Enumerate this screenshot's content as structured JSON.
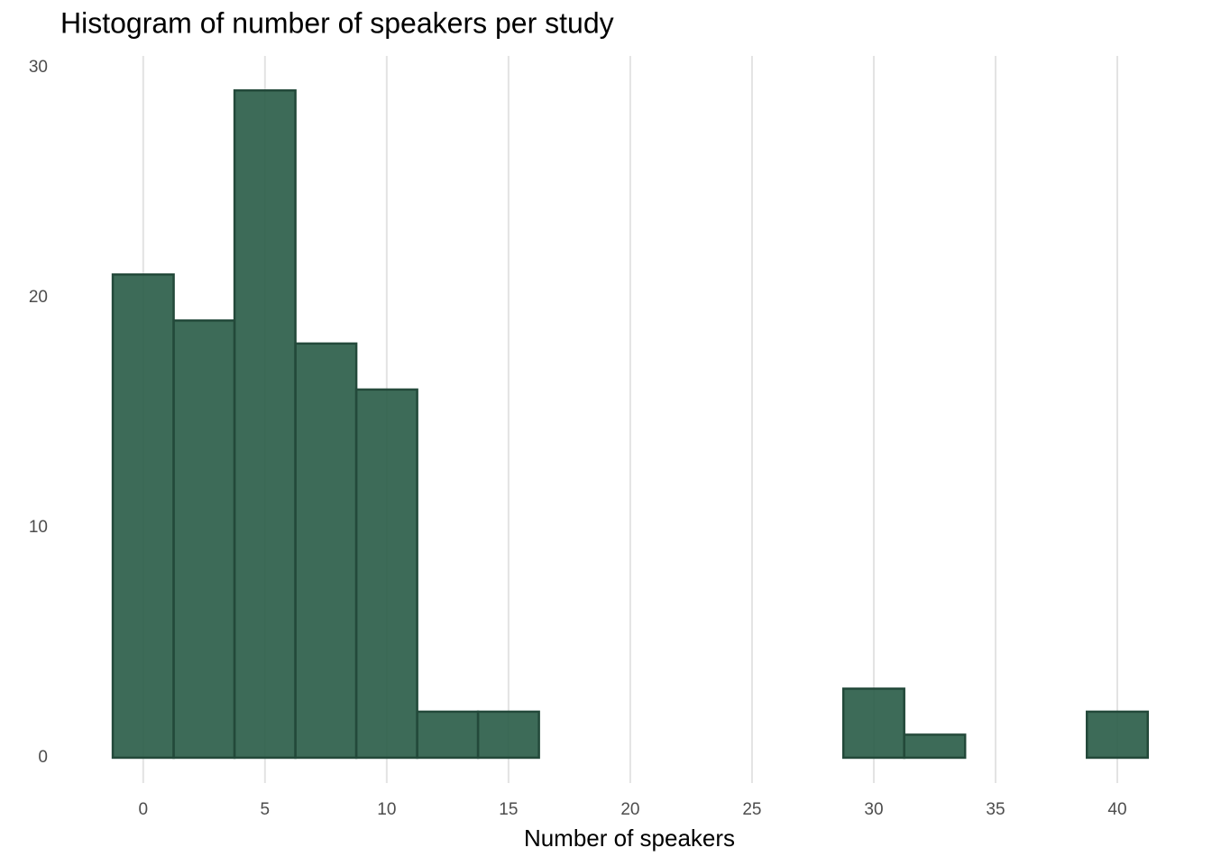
{
  "chart_data": {
    "type": "histogram",
    "title": "Histogram of number of speakers per study",
    "xlabel": "Number of speakers",
    "bins": [
      -1.25,
      1.25,
      3.75,
      6.25,
      8.75,
      11.25,
      13.75,
      16.25,
      18.75,
      21.25,
      23.75,
      26.25,
      28.75,
      31.25,
      33.75,
      36.25,
      38.75,
      41.25
    ],
    "values": [
      21,
      19,
      29,
      18,
      16,
      2,
      2,
      0,
      0,
      0,
      0,
      0,
      3,
      1,
      0,
      0,
      2
    ],
    "color": "#2d5e4a",
    "edgecolor": "#23493a",
    "xlim": [
      -3.4,
      42.0
    ],
    "ylim": [
      -1.1,
      30.5
    ],
    "xticks": [
      0,
      5,
      10,
      15,
      20,
      25,
      30,
      35,
      40
    ],
    "yticks": [
      0,
      10,
      20,
      30
    ],
    "grid": "x"
  }
}
